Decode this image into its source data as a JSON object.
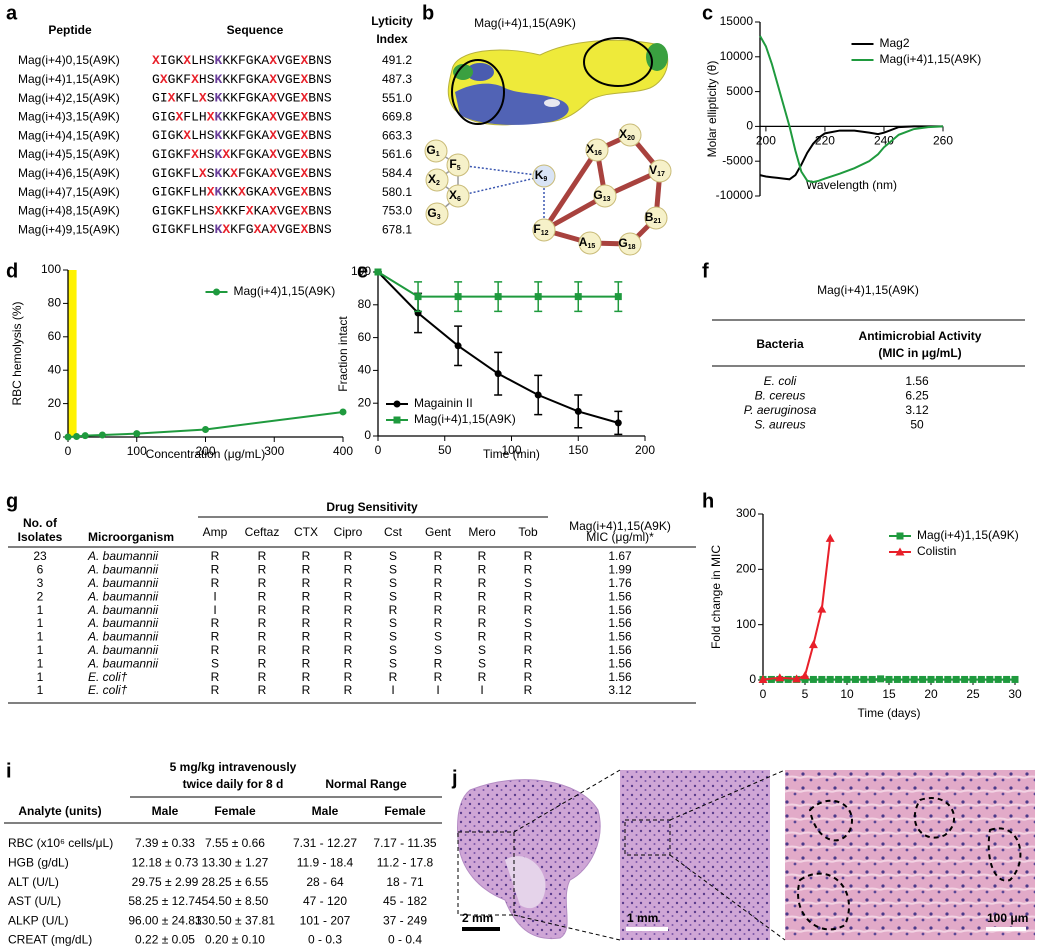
{
  "panel_a": {
    "panel": "a",
    "headers": {
      "peptide": "Peptide",
      "sequence": "Sequence",
      "lyticity": [
        "Lyticity",
        "Index"
      ]
    },
    "rows": [
      [
        "Mag(i+4)0,15(A9K)",
        "XIGKXLHSKKKFGKAXVGEXBNS",
        "491.2"
      ],
      [
        "Mag(i+4)1,15(A9K)",
        "GXGKFXHSKKKFGKAXVGEXBNS",
        "487.3"
      ],
      [
        "Mag(i+4)2,15(A9K)",
        "GIXKFLXSKKKFGKAXVGEXBNS",
        "551.0"
      ],
      [
        "Mag(i+4)3,15(A9K)",
        "GIGXFLHXKKKFGKAXVGEXBNS",
        "669.8"
      ],
      [
        "Mag(i+4)4,15(A9K)",
        "GIGKXLHSKKKFGKAXVGEXBNS",
        "663.3"
      ],
      [
        "Mag(i+4)5,15(A9K)",
        "GIGKFXHSKXKFGKAXVGEXBNS",
        "561.6"
      ],
      [
        "Mag(i+4)6,15(A9K)",
        "GIGKFLXSKKXFGKAXVGEXBNS",
        "584.4"
      ],
      [
        "Mag(i+4)7,15(A9K)",
        "GIGKFLHXKKKXGKAXVGEXBNS",
        "580.1"
      ],
      [
        "Mag(i+4)8,15(A9K)",
        "GIGKFLHSXKKFXKAXVGEXBNS",
        "753.0"
      ],
      [
        "Mag(i+4)9,15(A9K)",
        "GIGKFLHSKXKFGXAXVGEXBNS",
        "678.1"
      ]
    ],
    "highlight_colors": {
      "X": "#e8202a",
      "K": "#6a3d9a"
    }
  },
  "panel_b": {
    "panel": "b",
    "title": "Mag(i+4)1,15(A9K)",
    "nodes": [
      {
        "letter": "G",
        "sub": "1"
      },
      {
        "letter": "F",
        "sub": "5"
      },
      {
        "letter": "X",
        "sub": "2"
      },
      {
        "letter": "X",
        "sub": "6"
      },
      {
        "letter": "G",
        "sub": "3"
      },
      {
        "letter": "K",
        "sub": "9"
      },
      {
        "letter": "X",
        "sub": "16"
      },
      {
        "letter": "X",
        "sub": "20"
      },
      {
        "letter": "G",
        "sub": "13"
      },
      {
        "letter": "V",
        "sub": "17"
      },
      {
        "letter": "F",
        "sub": "12"
      },
      {
        "letter": "A",
        "sub": "15"
      },
      {
        "letter": "G",
        "sub": "18"
      },
      {
        "letter": "B",
        "sub": "21"
      }
    ]
  },
  "chart_data": [
    {
      "panel": "c",
      "type": "line",
      "xlabel": "Wavelength (nm)",
      "ylabel": "Molar ellipticity (θ)",
      "x": [
        198,
        200,
        202,
        204,
        206,
        208,
        210,
        212,
        214,
        216,
        218,
        220,
        225,
        230,
        235,
        238,
        240,
        245,
        250,
        255,
        260
      ],
      "xlim": [
        198,
        260
      ],
      "xticks": [
        200,
        220,
        240,
        260
      ],
      "ylim": [
        -10000,
        15000
      ],
      "yticks": [
        -10000,
        -5000,
        0,
        5000,
        10000,
        15000
      ],
      "x_axis_at_zero": true,
      "legend": "upper right",
      "series": [
        {
          "name": "Mag2",
          "color": "#000000",
          "values": [
            -7000,
            -7200,
            -7300,
            -7400,
            -7500,
            -7600,
            -7000,
            -5500,
            -3800,
            -2500,
            -1600,
            -1000,
            -600,
            -600,
            -900,
            -1100,
            -900,
            -100,
            0,
            0,
            0
          ]
        },
        {
          "name": "Mag(i+4)1,15(A9K)",
          "color": "#1f9a3e",
          "values": [
            13000,
            11500,
            9000,
            6000,
            3000,
            0,
            -3500,
            -6500,
            -7800,
            -8000,
            -7800,
            -7500,
            -6800,
            -6000,
            -5000,
            -4000,
            -3000,
            -1200,
            -400,
            -100,
            0
          ]
        }
      ]
    },
    {
      "panel": "d",
      "type": "line",
      "xlabel": "Concentration (μg/mL)",
      "ylabel": "RBC hemolysis (%)",
      "x": [
        0,
        12.5,
        25,
        50,
        100,
        200,
        400
      ],
      "xlim": [
        0,
        400
      ],
      "xticks": [
        0,
        100,
        200,
        300,
        400
      ],
      "ylim": [
        0,
        100
      ],
      "yticks": [
        0,
        20,
        40,
        60,
        80,
        100
      ],
      "shaded": {
        "xlim": [
          0,
          12.5
        ],
        "color": "#fff200"
      },
      "legend": "upper right",
      "series": [
        {
          "name": "Mag(i+4)1,15(A9K)",
          "color": "#1f9a3e",
          "marker": "circle",
          "values": [
            0,
            0.3,
            0.8,
            1.2,
            2,
            4.5,
            15
          ]
        }
      ]
    },
    {
      "panel": "e",
      "type": "line",
      "xlabel": "Time (min)",
      "ylabel": "Fraction intact",
      "x": [
        0,
        30,
        60,
        90,
        120,
        150,
        180
      ],
      "xlim": [
        0,
        200
      ],
      "xticks": [
        0,
        50,
        100,
        150,
        200
      ],
      "ylim": [
        0,
        100
      ],
      "yticks": [
        0,
        20,
        40,
        60,
        80,
        100
      ],
      "legend": "lower left",
      "series": [
        {
          "name": "Magainin II",
          "color": "#000000",
          "marker": "circle",
          "values": [
            100,
            75,
            55,
            38,
            25,
            15,
            8
          ],
          "errors": [
            0,
            12,
            12,
            13,
            12,
            10,
            7
          ]
        },
        {
          "name": "Mag(i+4)1,15(A9K)",
          "color": "#1f9a3e",
          "marker": "square",
          "values": [
            100,
            85,
            85,
            85,
            85,
            85,
            85
          ],
          "errors": [
            0,
            9,
            9,
            9,
            9,
            9,
            9
          ]
        }
      ]
    },
    {
      "panel": "h",
      "type": "line",
      "xlabel": "Time (days)",
      "ylabel": "Fold change in MIC",
      "xlim": [
        0,
        30
      ],
      "xticks": [
        0,
        5,
        10,
        15,
        20,
        25,
        30
      ],
      "ylim": [
        0,
        300
      ],
      "yticks": [
        0,
        100,
        200,
        300
      ],
      "legend": "upper right",
      "series": [
        {
          "name": "Mag(i+4)1,15(A9K)",
          "color": "#1f9a3e",
          "marker": "square",
          "x": [
            0,
            1,
            2,
            3,
            4,
            5,
            6,
            7,
            8,
            9,
            10,
            11,
            12,
            13,
            14,
            15,
            16,
            17,
            18,
            19,
            20,
            21,
            22,
            23,
            24,
            25,
            26,
            27,
            28,
            29,
            30
          ],
          "values": [
            1,
            1,
            1,
            1,
            1,
            1,
            1,
            1,
            1,
            1,
            1,
            1,
            1,
            1,
            2,
            1,
            1,
            1,
            1,
            1,
            1,
            1,
            1,
            1,
            1,
            1,
            1,
            1,
            1,
            1,
            1
          ]
        },
        {
          "name": "Colistin",
          "color": "#e8202a",
          "marker": "triangle",
          "x": [
            0,
            2,
            4,
            5,
            6,
            7,
            8
          ],
          "values": [
            1,
            4,
            2,
            8,
            64,
            128,
            256
          ]
        }
      ]
    }
  ],
  "panel_f": {
    "panel": "f",
    "title": "Mag(i+4)1,15(A9K)",
    "headers": {
      "bacteria": "Bacteria",
      "activity": [
        "Antimicrobial Activity",
        "(MIC in μg/mL)"
      ]
    },
    "rows": [
      [
        "E. coli",
        "1.56"
      ],
      [
        "B. cereus",
        "6.25"
      ],
      [
        "P. aeruginosa",
        "3.12"
      ],
      [
        "S. aureus",
        "50"
      ]
    ]
  },
  "panel_g": {
    "panel": "g",
    "group_header": "Drug Sensitivity",
    "headers": {
      "isolates": [
        "No. of",
        "Isolates"
      ],
      "organism": "Microorganism",
      "drugs": [
        "Amp",
        "Ceftaz",
        "CTX",
        "Cipro",
        "Cst",
        "Gent",
        "Mero",
        "Tob"
      ],
      "mic": [
        "Mag(i+4)1,15(A9K)",
        "MIC (μg/ml)*"
      ]
    },
    "rows": [
      {
        "n": "23",
        "organism": "A. baumannii",
        "sens": [
          "R",
          "R",
          "R",
          "R",
          "S",
          "R",
          "R",
          "R"
        ],
        "mic": "1.67"
      },
      {
        "n": "6",
        "organism": "A. baumannii",
        "sens": [
          "R",
          "R",
          "R",
          "R",
          "S",
          "R",
          "R",
          "R"
        ],
        "mic": "1.99"
      },
      {
        "n": "3",
        "organism": "A. baumannii",
        "sens": [
          "R",
          "R",
          "R",
          "R",
          "S",
          "R",
          "R",
          "S"
        ],
        "mic": "1.76"
      },
      {
        "n": "2",
        "organism": "A. baumannii",
        "sens": [
          "I",
          "R",
          "R",
          "R",
          "S",
          "R",
          "R",
          "R"
        ],
        "mic": "1.56"
      },
      {
        "n": "1",
        "organism": "A. baumannii",
        "sens": [
          "I",
          "R",
          "R",
          "R",
          "R",
          "R",
          "R",
          "R"
        ],
        "mic": "1.56"
      },
      {
        "n": "1",
        "organism": "A. baumannii",
        "sens": [
          "R",
          "R",
          "R",
          "R",
          "S",
          "R",
          "R",
          "S"
        ],
        "mic": "1.56"
      },
      {
        "n": "1",
        "organism": "A. baumannii",
        "sens": [
          "R",
          "R",
          "R",
          "R",
          "S",
          "S",
          "R",
          "R"
        ],
        "mic": "1.56"
      },
      {
        "n": "1",
        "organism": "A. baumannii",
        "sens": [
          "R",
          "R",
          "R",
          "R",
          "S",
          "S",
          "S",
          "R"
        ],
        "mic": "1.56"
      },
      {
        "n": "1",
        "organism": "A. baumannii",
        "sens": [
          "S",
          "R",
          "R",
          "R",
          "S",
          "R",
          "S",
          "R"
        ],
        "mic": "1.56"
      },
      {
        "n": "1",
        "organism": "E. coli†",
        "sens": [
          "R",
          "R",
          "R",
          "R",
          "R",
          "R",
          "R",
          "R"
        ],
        "mic": "1.56"
      },
      {
        "n": "1",
        "organism": "E. coli†",
        "sens": [
          "R",
          "R",
          "R",
          "R",
          "I",
          "I",
          "I",
          "R"
        ],
        "mic": "3.12"
      }
    ],
    "letter_colors": {
      "R": "#e8202a",
      "S": "#1f77c4",
      "I": "#000000"
    }
  },
  "panel_i": {
    "panel": "i",
    "group_headers": [
      [
        "5 mg/kg intravenously",
        "twice daily for 8 d"
      ],
      [
        "Normal Range"
      ]
    ],
    "headers": [
      "Analyte (units)",
      "Male",
      "Female",
      "Male",
      "Female"
    ],
    "rows": [
      [
        "RBC (x10⁶ cells/μL)",
        "7.39 ± 0.33",
        "7.55 ± 0.66",
        "7.31 - 12.27",
        "7.17 - 11.35"
      ],
      [
        "HGB (g/dL)",
        "12.18 ± 0.73",
        "13.30 ± 1.27",
        "11.9 - 18.4",
        "11.2 - 17.8"
      ],
      [
        "ALT (U/L)",
        "29.75 ± 2.99",
        "28.25 ± 6.55",
        "28 - 64",
        "18 - 71"
      ],
      [
        "AST (U/L)",
        "58.25 ± 12.74",
        "54.50 ± 8.50",
        "47 - 120",
        "45 - 182"
      ],
      [
        "ALKP (U/L)",
        "96.00 ± 24.83",
        "130.50 ± 37.81",
        "101 - 207",
        "37 - 249"
      ],
      [
        "CREAT (mg/dL)",
        "0.22 ± 0.05",
        "0.20 ± 0.10",
        "0 - 0.3",
        "0 - 0.4"
      ]
    ]
  },
  "panel_j": {
    "panel": "j",
    "scale_bars": [
      "2 mm",
      "1 mm",
      "100 μm"
    ]
  }
}
